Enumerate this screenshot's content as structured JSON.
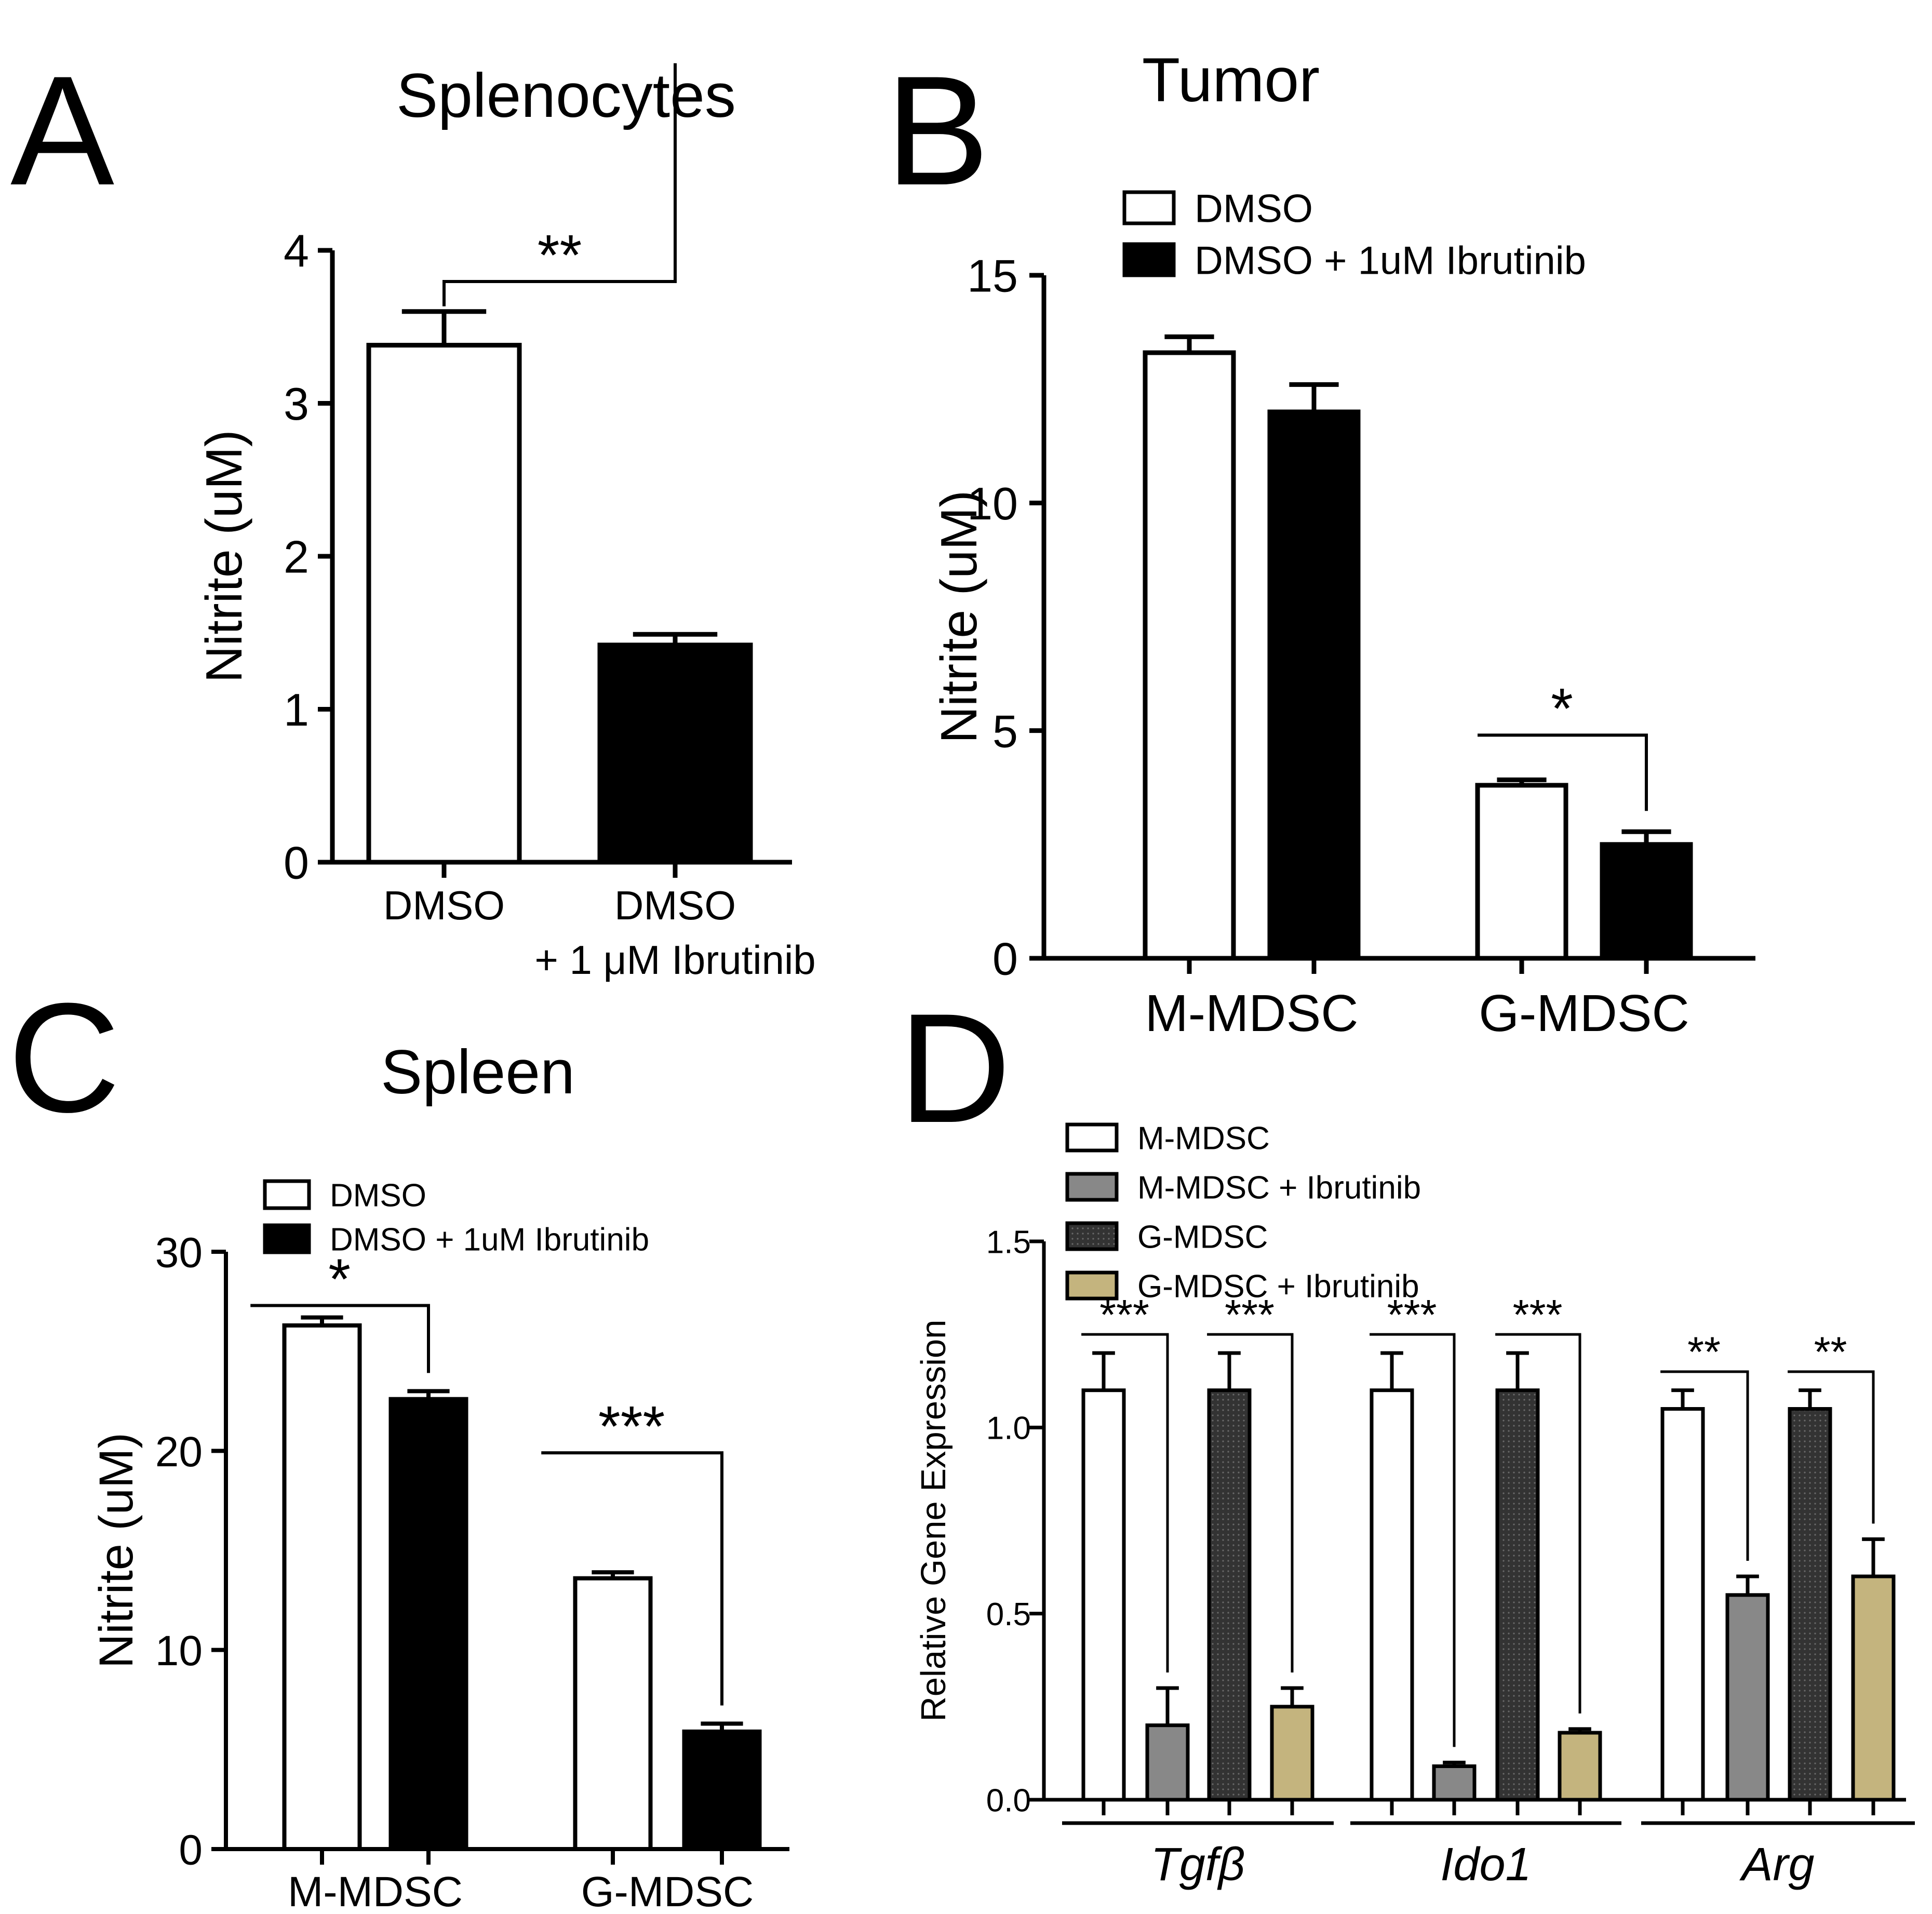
{
  "chart_data": [
    {
      "panel": "A",
      "type": "bar",
      "title": "Splenocytes",
      "ylabel": "Nitrite (uM)",
      "ylim": [
        0,
        4
      ],
      "yticks": [
        "0",
        "1",
        "2",
        "3",
        "4"
      ],
      "categories": [
        "DMSO",
        "DMSO\n+ 1 μM Ibrutinib"
      ],
      "series": [
        {
          "values": [
            3.38,
            1.42
          ],
          "errors": [
            0.22,
            0.07
          ],
          "colors": [
            "#ffffff",
            "#000000"
          ]
        }
      ],
      "significance": [
        {
          "label": "**",
          "between": [
            0,
            1
          ]
        }
      ]
    },
    {
      "panel": "B",
      "type": "bar",
      "title": "Tumor",
      "ylabel": "Nitrite (uM)",
      "ylim": [
        0,
        15
      ],
      "yticks": [
        "0",
        "5",
        "10",
        "15"
      ],
      "categories": [
        "M-MDSC",
        "G-MDSC"
      ],
      "legend_position": "top-left",
      "series": [
        {
          "name": "DMSO",
          "color": "#ffffff",
          "values": [
            13.3,
            3.8
          ],
          "errors": [
            0.35,
            0.12
          ]
        },
        {
          "name": "DMSO + 1uM Ibrutinib",
          "color": "#000000",
          "values": [
            12.0,
            2.5
          ],
          "errors": [
            0.6,
            0.28
          ]
        }
      ],
      "significance": [
        {
          "label": "*",
          "group": 1
        }
      ]
    },
    {
      "panel": "C",
      "type": "bar",
      "title": "Spleen",
      "ylabel": "Nitrite (uM)",
      "ylim": [
        0,
        30
      ],
      "yticks": [
        "0",
        "10",
        "20",
        "30"
      ],
      "categories": [
        "M-MDSC",
        "G-MDSC"
      ],
      "legend_position": "top-left",
      "series": [
        {
          "name": "DMSO",
          "color": "#ffffff",
          "values": [
            26.3,
            13.6
          ],
          "errors": [
            0.4,
            0.3
          ]
        },
        {
          "name": "DMSO + 1uM Ibrutinib",
          "color": "#000000",
          "values": [
            22.6,
            5.9
          ],
          "errors": [
            0.4,
            0.4
          ]
        }
      ],
      "significance": [
        {
          "label": "*",
          "group": 0
        },
        {
          "label": "***",
          "group": 1
        }
      ]
    },
    {
      "panel": "D",
      "type": "bar",
      "title": "",
      "ylabel": "Relative Gene Expression",
      "ylim": [
        0,
        1.5
      ],
      "yticks": [
        "0.0",
        "0.5",
        "1.0",
        "1.5"
      ],
      "categories": [
        "Tgfβ",
        "Ido1",
        "Arg"
      ],
      "legend_position": "top-left",
      "series": [
        {
          "name": "M-MDSC",
          "color": "#ffffff",
          "values": [
            1.1,
            1.1,
            1.05
          ],
          "errors": [
            0.1,
            0.1,
            0.05
          ]
        },
        {
          "name": "M-MDSC + Ibrutinib",
          "color": "#888888",
          "values": [
            0.2,
            0.09,
            0.55
          ],
          "errors": [
            0.1,
            0.01,
            0.05
          ]
        },
        {
          "name": "G-MDSC",
          "color": "#333333",
          "values": [
            1.1,
            1.1,
            1.05
          ],
          "errors": [
            0.1,
            0.1,
            0.05
          ]
        },
        {
          "name": "G-MDSC + Ibrutinib",
          "color": "#c4b47e",
          "values": [
            0.25,
            0.18,
            0.6
          ],
          "errors": [
            0.05,
            0.01,
            0.1
          ]
        }
      ],
      "significance": [
        {
          "label": "***",
          "group": 0,
          "pair": [
            0,
            1
          ]
        },
        {
          "label": "***",
          "group": 0,
          "pair": [
            2,
            3
          ]
        },
        {
          "label": "***",
          "group": 1,
          "pair": [
            0,
            1
          ]
        },
        {
          "label": "***",
          "group": 1,
          "pair": [
            2,
            3
          ]
        },
        {
          "label": "**",
          "group": 2,
          "pair": [
            0,
            1
          ]
        },
        {
          "label": "**",
          "group": 2,
          "pair": [
            2,
            3
          ]
        }
      ]
    }
  ]
}
